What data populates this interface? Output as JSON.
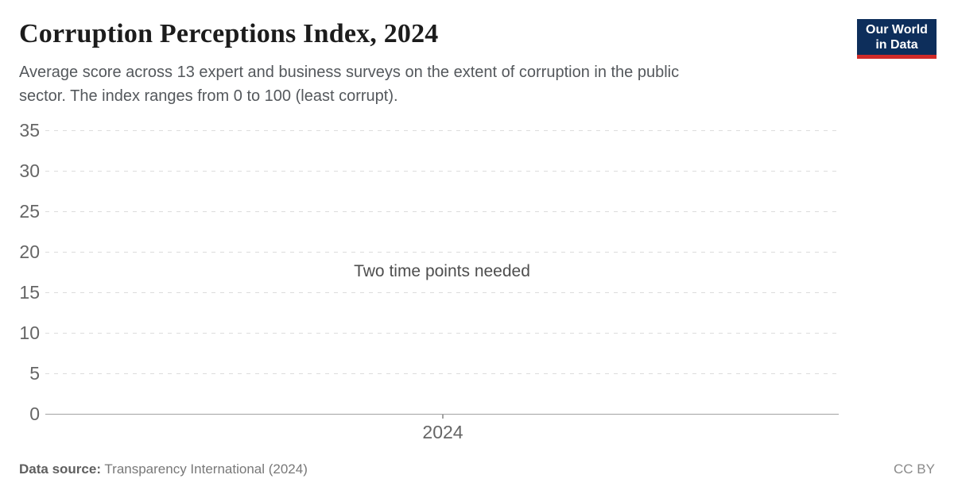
{
  "header": {
    "title": "Corruption Perceptions Index, 2024",
    "subtitle_line1": "Average score across 13 expert and business surveys on the extent of corruption in the public",
    "subtitle_line2": "sector. The index ranges from 0 to 100 (least corrupt).",
    "logo": {
      "line1": "Our World",
      "line2": "in Data",
      "bg_color": "#0d2e5b",
      "bar_color": "#d02a28"
    }
  },
  "chart_data": {
    "type": "line",
    "title": "Corruption Perceptions Index, 2024",
    "empty_message": "Two time points needed",
    "series": [],
    "values": [],
    "x_ticks": [
      "2024"
    ],
    "y_ticks_top_to_bottom": [
      35,
      30,
      25,
      20,
      15,
      10,
      5,
      0
    ],
    "ylim": [
      0,
      35
    ],
    "grid": "horizontal dashed",
    "legend": "none"
  },
  "footer": {
    "source_label": "Data source:",
    "source_value": "Transparency International (2024)",
    "license": "CC BY"
  },
  "colors": {
    "title": "#1c1c1c",
    "subtitle": "#54585c",
    "tick_label": "#666666",
    "gridline": "#dcdcdc",
    "axis_line": "#a3a3a3",
    "message": "#4e4e4e",
    "footer": "#787878",
    "logo_bg": "#0d2e5b",
    "logo_bar": "#d02a28"
  },
  "layout_constants": {
    "grid_top_y": 164,
    "grid_step_y": 51
  }
}
